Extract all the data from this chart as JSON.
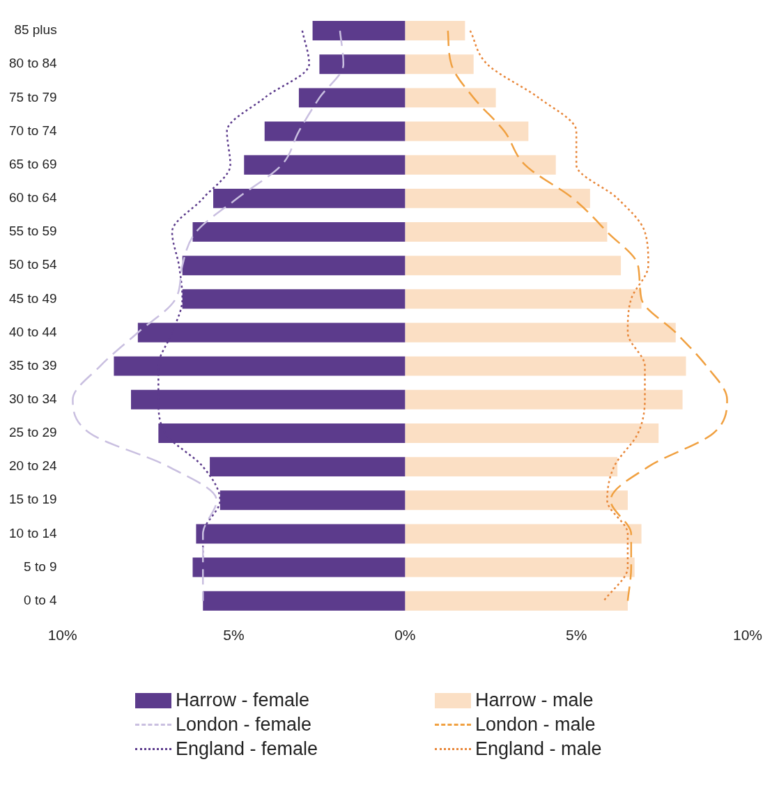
{
  "chart_data": {
    "type": "bar",
    "orientation": "horizontal",
    "categories": [
      "85 plus",
      "80 to 84",
      "75 to 79",
      "70 to 74",
      "65 to 69",
      "60 to 64",
      "55 to 59",
      "50 to 54",
      "45 to 49",
      "40 to 44",
      "35 to 39",
      "30 to 34",
      "25 to 29",
      "20 to 24",
      "15 to 19",
      "10 to 14",
      "5 to 9",
      "0 to 4"
    ],
    "series": [
      {
        "name": "Harrow - female",
        "color": "#5c3b8c",
        "values": [
          -2.7,
          -2.5,
          -3.1,
          -4.1,
          -4.7,
          -5.6,
          -6.2,
          -6.5,
          -6.5,
          -7.8,
          -8.5,
          -8.0,
          -7.2,
          -5.7,
          -5.4,
          -6.1,
          -6.2,
          -5.9
        ]
      },
      {
        "name": "Harrow - male",
        "color": "#fbdfc4",
        "values": [
          1.75,
          2.0,
          2.65,
          3.6,
          4.4,
          5.4,
          5.9,
          6.3,
          6.9,
          7.9,
          8.2,
          8.1,
          7.4,
          6.2,
          6.5,
          6.9,
          6.7,
          6.5
        ]
      },
      {
        "name": "London - female",
        "type": "line",
        "line_style": "dashed",
        "color": "#c9bfe0",
        "values": [
          -1.9,
          -1.8,
          -2.5,
          -3.1,
          -3.6,
          -4.9,
          -6.1,
          -6.5,
          -6.7,
          -7.8,
          -8.9,
          -9.7,
          -9.2,
          -6.9,
          -5.5,
          -5.9,
          -5.9,
          -5.9
        ]
      },
      {
        "name": "London - male",
        "type": "line",
        "line_style": "dashed",
        "color": "#f0a040",
        "values": [
          1.25,
          1.35,
          2.0,
          2.9,
          3.5,
          4.9,
          5.9,
          6.8,
          6.9,
          7.9,
          8.8,
          9.4,
          9.0,
          7.1,
          6.0,
          6.6,
          6.6,
          6.5
        ]
      },
      {
        "name": "England - female",
        "type": "line",
        "line_style": "dotted",
        "color": "#5c3b8c",
        "values": [
          -3.0,
          -2.8,
          -4.1,
          -5.2,
          -5.1,
          -5.9,
          -6.8,
          -6.6,
          -6.5,
          -6.8,
          -7.2,
          -7.2,
          -7.0,
          -5.9,
          -5.4,
          -5.9,
          -5.9,
          null
        ]
      },
      {
        "name": "England - male",
        "type": "line",
        "line_style": "dotted",
        "color": "#e8873a",
        "values": [
          1.9,
          2.4,
          3.9,
          5.0,
          5.0,
          6.2,
          7.0,
          7.1,
          6.6,
          6.5,
          7.0,
          7.0,
          6.8,
          6.1,
          5.9,
          6.5,
          6.5,
          5.8
        ]
      }
    ],
    "xlim": [
      -10,
      10
    ],
    "xticks": [
      {
        "value": -10,
        "label": "10%"
      },
      {
        "value": -5,
        "label": "5%"
      },
      {
        "value": 0,
        "label": "0%"
      },
      {
        "value": 5,
        "label": "5%"
      },
      {
        "value": 10,
        "label": "10%"
      }
    ],
    "stacked": true,
    "grid": false,
    "legend": "bottom",
    "marker": "none"
  }
}
